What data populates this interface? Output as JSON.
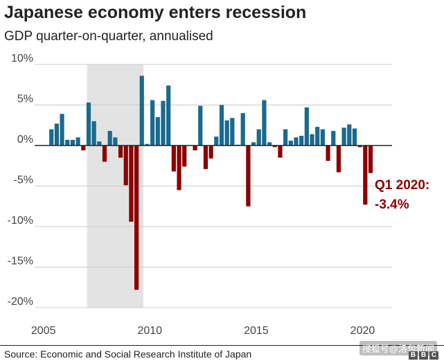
{
  "title": "Japanese economy enters recession",
  "subtitle": "GDP quarter-on-quarter, annualised",
  "source": "Source: Economic and Social Research Institute of Japan",
  "watermark": "搜狐号@洛包新闻",
  "logo_letters": [
    "B",
    "B",
    "C"
  ],
  "annotation": {
    "line1": "Q1 2020:",
    "line2": "-3.4%",
    "color": "#8b0000"
  },
  "colors": {
    "positive": "#1a6a8e",
    "negative": "#8b0000",
    "recession_shade": "#e3e3e3",
    "gridline": "#cccccc",
    "zero_line": "#222222"
  },
  "chart_data": {
    "type": "bar",
    "x_first": "2005 Q2",
    "x_ticks": [
      "2005",
      "2010",
      "2015",
      "2020"
    ],
    "y_ticks": [
      "10%",
      "5%",
      "0%",
      "-5%",
      "-10%",
      "-15%",
      "-20%"
    ],
    "ylim": [
      -20,
      10
    ],
    "grid": true,
    "shaded_region": {
      "from": "2007 Q1",
      "to": "2009 Q3"
    },
    "values": [
      2.0,
      2.7,
      3.9,
      0.7,
      0.7,
      1.0,
      -0.6,
      5.3,
      3.0,
      0.5,
      -2.0,
      1.8,
      1.0,
      -1.5,
      -4.9,
      -9.4,
      -17.8,
      8.6,
      0.2,
      5.6,
      3.5,
      5.5,
      7.4,
      -3.2,
      -5.5,
      -2.6,
      0.0,
      -0.6,
      4.9,
      -2.9,
      -1.6,
      1.1,
      5.0,
      3.1,
      3.4,
      0.1,
      4.0,
      -7.5,
      0.4,
      2.0,
      5.6,
      0.4,
      -0.2,
      -1.5,
      2.0,
      0.6,
      1.0,
      1.2,
      4.7,
      1.4,
      2.3,
      2.0,
      -1.9,
      1.8,
      -3.3,
      2.2,
      2.6,
      2.1,
      -0.2,
      -7.3,
      -3.4
    ]
  }
}
